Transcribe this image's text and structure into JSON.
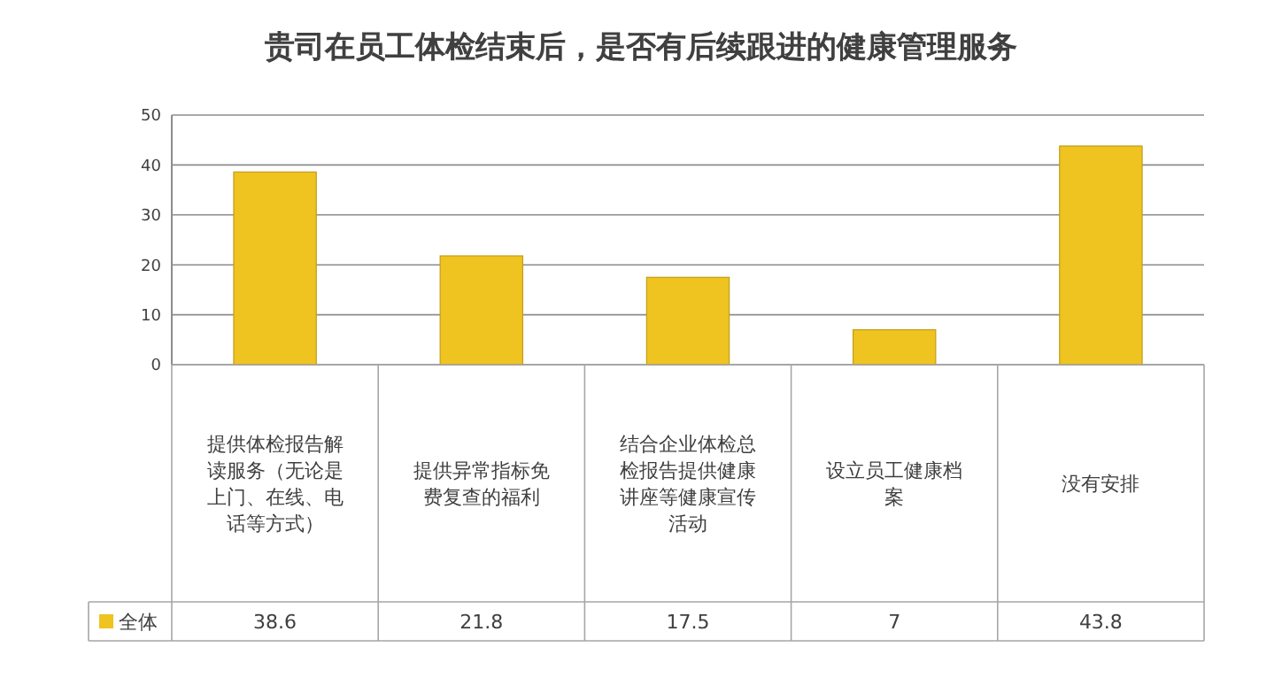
{
  "chart_data": {
    "type": "bar",
    "title": "贵司在员工体检结束后，是否有后续跟进的健康管理服务",
    "categories": [
      "提供体检报告解读服务（无论是上门、在线、电话等方式）",
      "提供异常指标免费复查的福利",
      "结合企业体检总检报告提供健康讲座等健康宣传活动",
      "设立员工健康档案",
      "没有安排"
    ],
    "series": [
      {
        "name": "全体",
        "color": "#efc320",
        "values": [
          38.6,
          21.8,
          17.5,
          7,
          43.8
        ]
      }
    ],
    "ylim": [
      0,
      50
    ],
    "yticks": [
      0,
      10,
      20,
      30,
      40,
      50
    ],
    "grid": "y",
    "legend": "bottom left",
    "data_labels": true
  }
}
